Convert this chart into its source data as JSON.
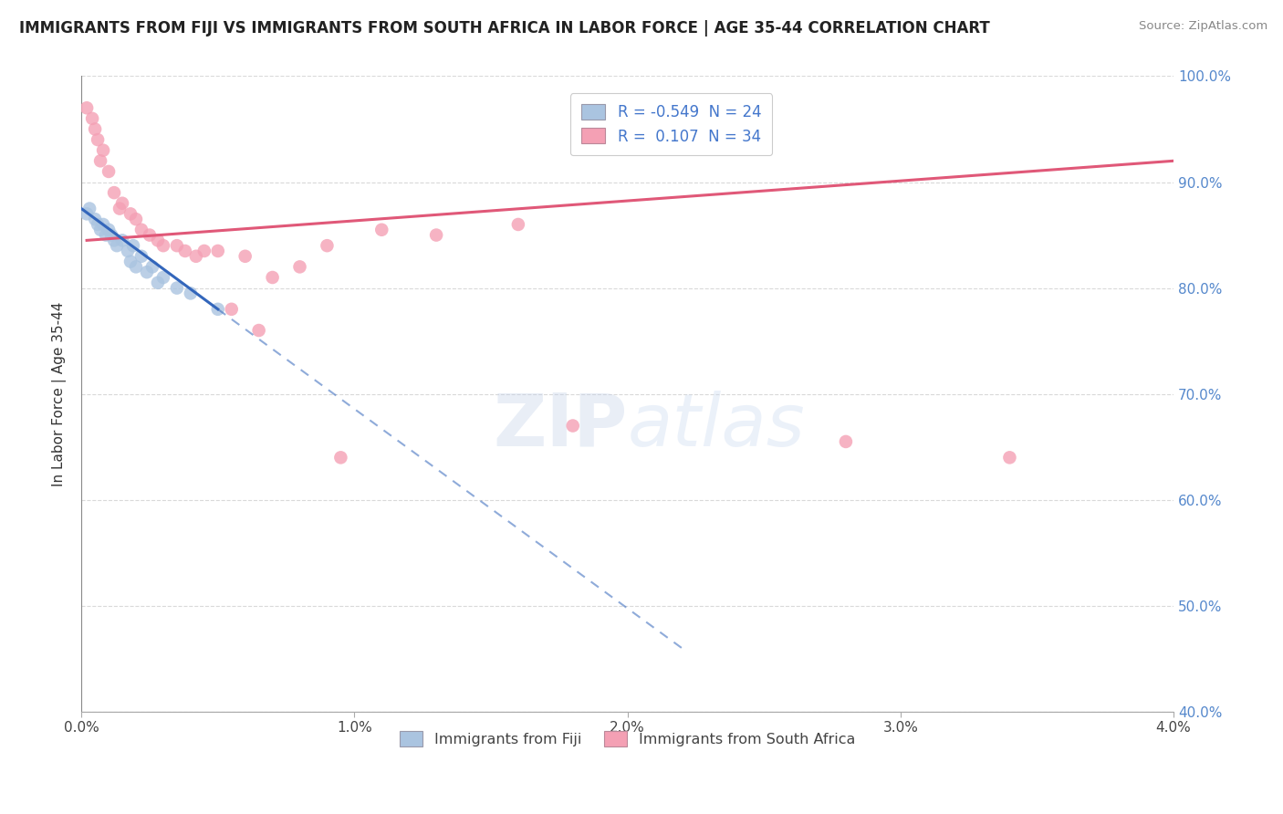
{
  "title": "IMMIGRANTS FROM FIJI VS IMMIGRANTS FROM SOUTH AFRICA IN LABOR FORCE | AGE 35-44 CORRELATION CHART",
  "source": "Source: ZipAtlas.com",
  "ylabel": "In Labor Force | Age 35-44",
  "xlim": [
    0.0,
    4.0
  ],
  "ylim": [
    40.0,
    100.0
  ],
  "x_ticks": [
    0.0,
    1.0,
    2.0,
    3.0,
    4.0
  ],
  "y_ticks": [
    40.0,
    50.0,
    60.0,
    70.0,
    80.0,
    90.0,
    100.0
  ],
  "legend_fiji_r": "-0.549",
  "legend_fiji_n": "24",
  "legend_sa_r": "0.107",
  "legend_sa_n": "34",
  "fiji_color": "#aac4e0",
  "sa_color": "#f4a0b4",
  "fiji_line_color": "#3366bb",
  "sa_line_color": "#e05878",
  "background_color": "#ffffff",
  "grid_color": "#d0d0d0",
  "fiji_x": [
    0.02,
    0.03,
    0.05,
    0.06,
    0.07,
    0.08,
    0.09,
    0.1,
    0.11,
    0.12,
    0.13,
    0.15,
    0.17,
    0.19,
    0.22,
    0.26,
    0.3,
    0.35,
    0.4,
    0.18,
    0.2,
    0.24,
    0.28,
    0.5
  ],
  "fiji_y": [
    87.0,
    87.5,
    86.5,
    86.0,
    85.5,
    86.0,
    85.0,
    85.5,
    85.0,
    84.5,
    84.0,
    84.5,
    83.5,
    84.0,
    83.0,
    82.0,
    81.0,
    80.0,
    79.5,
    82.5,
    82.0,
    81.5,
    80.5,
    78.0
  ],
  "sa_x": [
    0.02,
    0.04,
    0.05,
    0.06,
    0.08,
    0.1,
    0.12,
    0.15,
    0.18,
    0.2,
    0.22,
    0.25,
    0.28,
    0.3,
    0.35,
    0.38,
    0.42,
    0.5,
    0.6,
    0.7,
    0.8,
    0.9,
    1.1,
    1.3,
    1.6,
    0.07,
    0.14,
    0.45,
    0.55,
    0.65,
    1.8,
    0.95,
    2.8,
    3.4
  ],
  "sa_y": [
    97.0,
    96.0,
    95.0,
    94.0,
    93.0,
    91.0,
    89.0,
    88.0,
    87.0,
    86.5,
    85.5,
    85.0,
    84.5,
    84.0,
    84.0,
    83.5,
    83.0,
    83.5,
    83.0,
    81.0,
    82.0,
    84.0,
    85.5,
    85.0,
    86.0,
    92.0,
    87.5,
    83.5,
    78.0,
    76.0,
    67.0,
    64.0,
    65.5,
    64.0
  ],
  "fiji_line_x0": 0.0,
  "fiji_line_y0": 87.5,
  "fiji_line_x1": 0.5,
  "fiji_line_y1": 78.0,
  "fiji_dash_x0": 0.5,
  "fiji_dash_y0": 78.0,
  "fiji_dash_x1": 2.2,
  "fiji_dash_y1": 46.0,
  "sa_line_x0": 0.02,
  "sa_line_y0": 84.5,
  "sa_line_x1": 4.0,
  "sa_line_y1": 92.0
}
